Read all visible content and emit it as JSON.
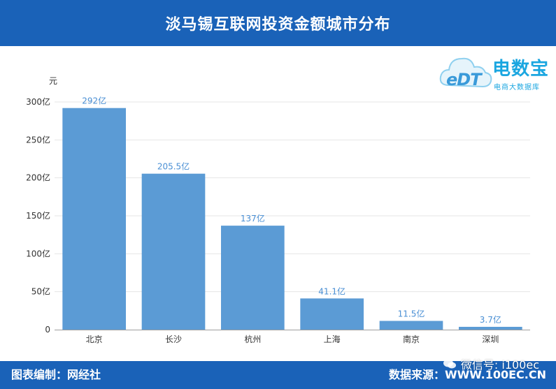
{
  "header": {
    "title": "淡马锡互联网投资金额城市分布"
  },
  "footer": {
    "left": "图表编制：网经社",
    "right": "数据来源：WWW.100EC.CN"
  },
  "watermark": {
    "text": "微信号: i100ec",
    "icon": "wechat-icon"
  },
  "logo": {
    "title": "电数宝",
    "subtitle": "电商大数据库",
    "mark": "eDT"
  },
  "colors": {
    "header_bg": "#1a62b8",
    "bar": "#5b9bd5",
    "label": "#4a8fd4"
  },
  "chart_data": {
    "type": "bar",
    "categories": [
      "北京",
      "长沙",
      "杭州",
      "上海",
      "南京",
      "深圳"
    ],
    "values": [
      292,
      205.5,
      137,
      41.1,
      11.5,
      3.7
    ],
    "data_labels": [
      "292亿",
      "205.5亿",
      "137亿",
      "41.1亿",
      "11.5亿",
      "3.7亿"
    ],
    "yticks": [
      "0",
      "50亿",
      "100亿",
      "150亿",
      "200亿",
      "250亿",
      "300亿"
    ],
    "ylabel": "元",
    "ylim": [
      0,
      300
    ],
    "grid": true,
    "legend": "none"
  }
}
